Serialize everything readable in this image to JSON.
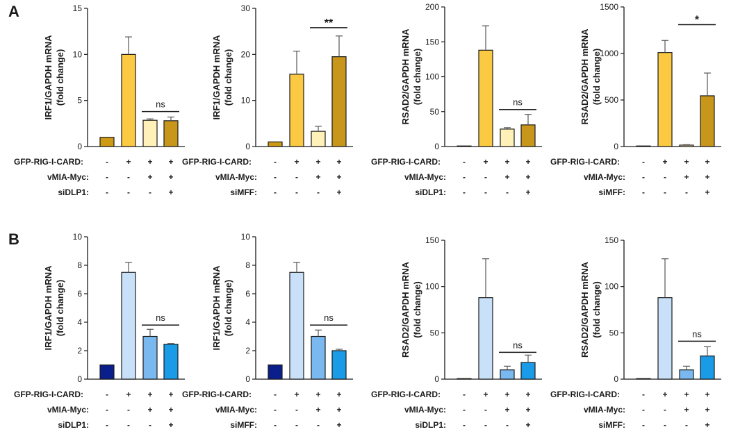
{
  "panels": [
    {
      "label": "A"
    },
    {
      "label": "B"
    }
  ],
  "colors": {
    "axis": "#1a1a1a",
    "bar_outline": "#1a1a1a",
    "error_bar": "#555555"
  },
  "chart_data": [
    {
      "type": "bar",
      "panel": "A",
      "title": "",
      "ylabel_line1": "IRF1/GAPDH mRNA",
      "ylabel_line2": "(fold change)",
      "ylim": [
        0,
        15
      ],
      "yticks": [
        0,
        5,
        10,
        15
      ],
      "values": [
        1.0,
        10.0,
        2.85,
        2.8
      ],
      "errors": [
        0,
        1.9,
        0.15,
        0.4
      ],
      "colors": [
        "#cc9a14",
        "#fcc943",
        "#fff1b8",
        "#c9961c"
      ],
      "conditions": [
        {
          "name": "GFP-RIG-I-CARD:",
          "signs": [
            "-",
            "+",
            "+",
            "+"
          ]
        },
        {
          "name": "vMIA-Myc:",
          "signs": [
            "-",
            "-",
            "+",
            "+"
          ]
        },
        {
          "name": "siDLP1:",
          "signs": [
            "-",
            "-",
            "-",
            "+"
          ]
        }
      ],
      "significance": {
        "label": "ns",
        "from": 2,
        "to": 3,
        "y": 3.8
      }
    },
    {
      "type": "bar",
      "panel": "A",
      "title": "",
      "ylabel_line1": "IRF1/GAPDH mRNA",
      "ylabel_line2": "(fold change)",
      "ylim": [
        0,
        30
      ],
      "yticks": [
        0,
        10,
        20,
        30
      ],
      "values": [
        1.0,
        15.7,
        3.3,
        19.5
      ],
      "errors": [
        0,
        5.0,
        1.1,
        4.5
      ],
      "colors": [
        "#cc9a14",
        "#fcc943",
        "#fff1b8",
        "#c9961c"
      ],
      "conditions": [
        {
          "name": "GFP-RIG-I-CARD:",
          "signs": [
            "-",
            "+",
            "+",
            "+"
          ]
        },
        {
          "name": "vMIA-Myc:",
          "signs": [
            "-",
            "-",
            "+",
            "+"
          ]
        },
        {
          "name": "siMFF:",
          "signs": [
            "-",
            "-",
            "-",
            "+"
          ]
        }
      ],
      "significance": {
        "label": "**",
        "from": 2,
        "to": 3,
        "y": 25.8
      }
    },
    {
      "type": "bar",
      "panel": "A",
      "title": "",
      "ylabel_line1": "RSAD2/GAPDH mRNA",
      "ylabel_line2": "(fold change)",
      "ylim": [
        0,
        200
      ],
      "yticks": [
        0,
        50,
        100,
        150,
        200
      ],
      "values": [
        0.5,
        138,
        25,
        31
      ],
      "errors": [
        0,
        35,
        2,
        15
      ],
      "colors": [
        "#cc9a14",
        "#fcc943",
        "#fff1b8",
        "#c9961c"
      ],
      "conditions": [
        {
          "name": "GFP-RIG-I-CARD:",
          "signs": [
            "-",
            "+",
            "+",
            "+"
          ]
        },
        {
          "name": "vMIA-Myc:",
          "signs": [
            "-",
            "-",
            "+",
            "+"
          ]
        },
        {
          "name": "siDLP1:",
          "signs": [
            "-",
            "-",
            "-",
            "+"
          ]
        }
      ],
      "significance": {
        "label": "ns",
        "from": 2,
        "to": 3,
        "y": 53
      }
    },
    {
      "type": "bar",
      "panel": "A",
      "title": "",
      "ylabel_line1": "RSAD2/GAPDH mRNA",
      "ylabel_line2": "(fold change)",
      "ylim": [
        0,
        1500
      ],
      "yticks": [
        0,
        500,
        1000,
        1500
      ],
      "values": [
        3,
        1010,
        15,
        545
      ],
      "errors": [
        0,
        130,
        5,
        245
      ],
      "colors": [
        "#cc9a14",
        "#fcc943",
        "#fff1b8",
        "#c9961c"
      ],
      "conditions": [
        {
          "name": "GFP-RIG-I-CARD:",
          "signs": [
            "-",
            "+",
            "+",
            "+"
          ]
        },
        {
          "name": "vMIA-Myc:",
          "signs": [
            "-",
            "-",
            "+",
            "+"
          ]
        },
        {
          "name": "siMFF:",
          "signs": [
            "-",
            "-",
            "-",
            "+"
          ]
        }
      ],
      "significance": {
        "label": "*",
        "from": 2,
        "to": 3,
        "y": 1310
      }
    },
    {
      "type": "bar",
      "panel": "B",
      "title": "",
      "ylabel_line1": "IRF1/GAPDH mRNA",
      "ylabel_line2": "(fold change)",
      "ylim": [
        0,
        10
      ],
      "yticks": [
        0,
        2,
        4,
        6,
        8,
        10
      ],
      "values": [
        1.0,
        7.5,
        3.0,
        2.45
      ],
      "errors": [
        0,
        0.7,
        0.5,
        0.05
      ],
      "colors": [
        "#0a1e8c",
        "#c8e0f8",
        "#7ab9f0",
        "#1a9be8"
      ],
      "conditions": [
        {
          "name": "GFP-RIG-I-CARD:",
          "signs": [
            "-",
            "+",
            "+",
            "+"
          ]
        },
        {
          "name": "vMIA-Myc:",
          "signs": [
            "-",
            "-",
            "+",
            "+"
          ]
        },
        {
          "name": "siDLP1:",
          "signs": [
            "-",
            "-",
            "-",
            "+"
          ]
        }
      ],
      "significance": {
        "label": "ns",
        "from": 2,
        "to": 3,
        "y": 3.8
      }
    },
    {
      "type": "bar",
      "panel": "B",
      "title": "",
      "ylabel_line1": "IRF1/GAPDH mRNA",
      "ylabel_line2": "(fold change)",
      "ylim": [
        0,
        10
      ],
      "yticks": [
        0,
        2,
        4,
        6,
        8,
        10
      ],
      "values": [
        1.0,
        7.5,
        3.0,
        2.0
      ],
      "errors": [
        0,
        0.7,
        0.45,
        0.1
      ],
      "colors": [
        "#0a1e8c",
        "#c8e0f8",
        "#7ab9f0",
        "#1a9be8"
      ],
      "conditions": [
        {
          "name": "GFP-RIG-I-CARD:",
          "signs": [
            "-",
            "+",
            "+",
            "+"
          ]
        },
        {
          "name": "vMIA-Myc:",
          "signs": [
            "-",
            "-",
            "+",
            "+"
          ]
        },
        {
          "name": "siMFF:",
          "signs": [
            "-",
            "-",
            "-",
            "+"
          ]
        }
      ],
      "significance": {
        "label": "ns",
        "from": 2,
        "to": 3,
        "y": 3.8
      }
    },
    {
      "type": "bar",
      "panel": "B",
      "title": "",
      "ylabel_line1": "RSAD2/GAPDH mRNA",
      "ylabel_line2": "(fold change)",
      "ylim": [
        0,
        150
      ],
      "yticks": [
        0,
        50,
        100,
        150
      ],
      "values": [
        0.5,
        88,
        10,
        18
      ],
      "errors": [
        0,
        42,
        4,
        8
      ],
      "colors": [
        "#0a1e8c",
        "#c8e0f8",
        "#7ab9f0",
        "#1a9be8"
      ],
      "conditions": [
        {
          "name": "GFP-RIG-I-CARD:",
          "signs": [
            "-",
            "+",
            "+",
            "+"
          ]
        },
        {
          "name": "vMIA-Myc:",
          "signs": [
            "-",
            "-",
            "+",
            "+"
          ]
        },
        {
          "name": "siDLP1:",
          "signs": [
            "-",
            "-",
            "-",
            "+"
          ]
        }
      ],
      "significance": {
        "label": "ns",
        "from": 2,
        "to": 3,
        "y": 29
      }
    },
    {
      "type": "bar",
      "panel": "B",
      "title": "",
      "ylabel_line1": "RSAD2/GAPDH mRNA",
      "ylabel_line2": "(fold change)",
      "ylim": [
        0,
        150
      ],
      "yticks": [
        0,
        50,
        100,
        150
      ],
      "values": [
        0.5,
        88,
        10,
        25
      ],
      "errors": [
        0,
        42,
        4,
        10
      ],
      "colors": [
        "#0a1e8c",
        "#c8e0f8",
        "#7ab9f0",
        "#1a9be8"
      ],
      "conditions": [
        {
          "name": "GFP-RIG-I-CARD:",
          "signs": [
            "-",
            "+",
            "+",
            "+"
          ]
        },
        {
          "name": "vMIA-Myc:",
          "signs": [
            "-",
            "-",
            "+",
            "+"
          ]
        },
        {
          "name": "siMFF:",
          "signs": [
            "-",
            "-",
            "-",
            "+"
          ]
        }
      ],
      "significance": {
        "label": "ns",
        "from": 2,
        "to": 3,
        "y": 41
      }
    }
  ]
}
